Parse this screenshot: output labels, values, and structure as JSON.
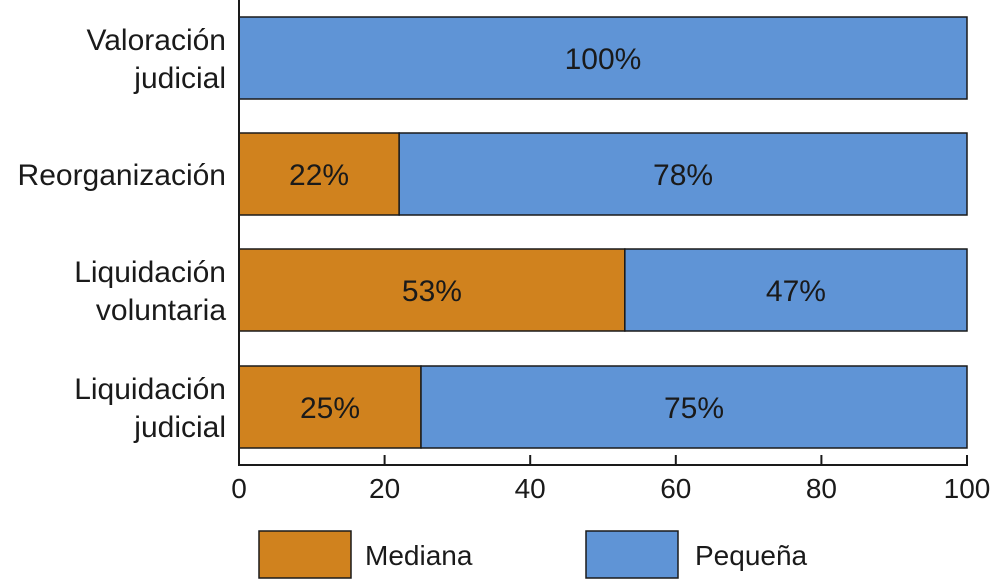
{
  "chart_data": {
    "type": "bar",
    "orientation": "horizontal",
    "stacked": true,
    "title": "",
    "xlabel": "",
    "ylabel": "",
    "xlim": [
      0,
      100
    ],
    "x_ticks": [
      0,
      20,
      40,
      60,
      80,
      100
    ],
    "categories": [
      [
        "Valoración",
        "judicial"
      ],
      [
        "Reorganización"
      ],
      [
        "Liquidación",
        "voluntaria"
      ],
      [
        "Liquidación",
        "judicial"
      ]
    ],
    "series": [
      {
        "name": "Mediana",
        "color": "#D0821E",
        "values": [
          0,
          22,
          53,
          25
        ],
        "labels": [
          "",
          "22%",
          "53%",
          "25%"
        ]
      },
      {
        "name": "Pequeña",
        "color": "#5F94D6",
        "values": [
          100,
          78,
          47,
          75
        ],
        "labels": [
          "100%",
          "78%",
          "47%",
          "75%"
        ]
      }
    ],
    "grid": false,
    "legend_position": "bottom"
  }
}
